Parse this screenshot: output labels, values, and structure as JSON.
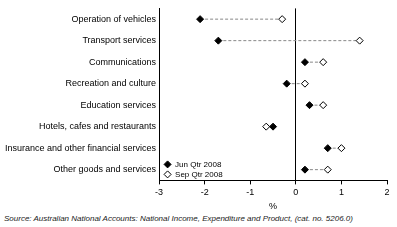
{
  "chart_data": {
    "type": "dot",
    "orientation": "horizontal",
    "categories": [
      "Operation of vehicles",
      "Transport services",
      "Communications",
      "Recreation and culture",
      "Education services",
      "Hotels, cafes and restaurants",
      "Insurance and other financial services",
      "Other goods and services"
    ],
    "series": [
      {
        "name": "Jun Qtr 2008",
        "color": "#000000",
        "marker": "filled diamond",
        "values": [
          -2.1,
          -1.7,
          0.2,
          -0.2,
          0.3,
          -0.5,
          0.7,
          0.2
        ]
      },
      {
        "name": "Sep Qtr 2008",
        "color": "#000000",
        "marker": "hollow diamond",
        "values": [
          -0.3,
          1.4,
          0.6,
          0.2,
          0.6,
          -0.65,
          1.0,
          0.7
        ]
      }
    ],
    "x_label": "%",
    "xlim": [
      -3,
      2
    ],
    "xticks": [
      -3,
      -2,
      -1,
      0,
      1,
      2
    ],
    "grid": false,
    "legend": "lower left",
    "source": "Source: Australian National Accounts: National Income, Expenditure and Product, (cat. no. 5206.0)"
  }
}
